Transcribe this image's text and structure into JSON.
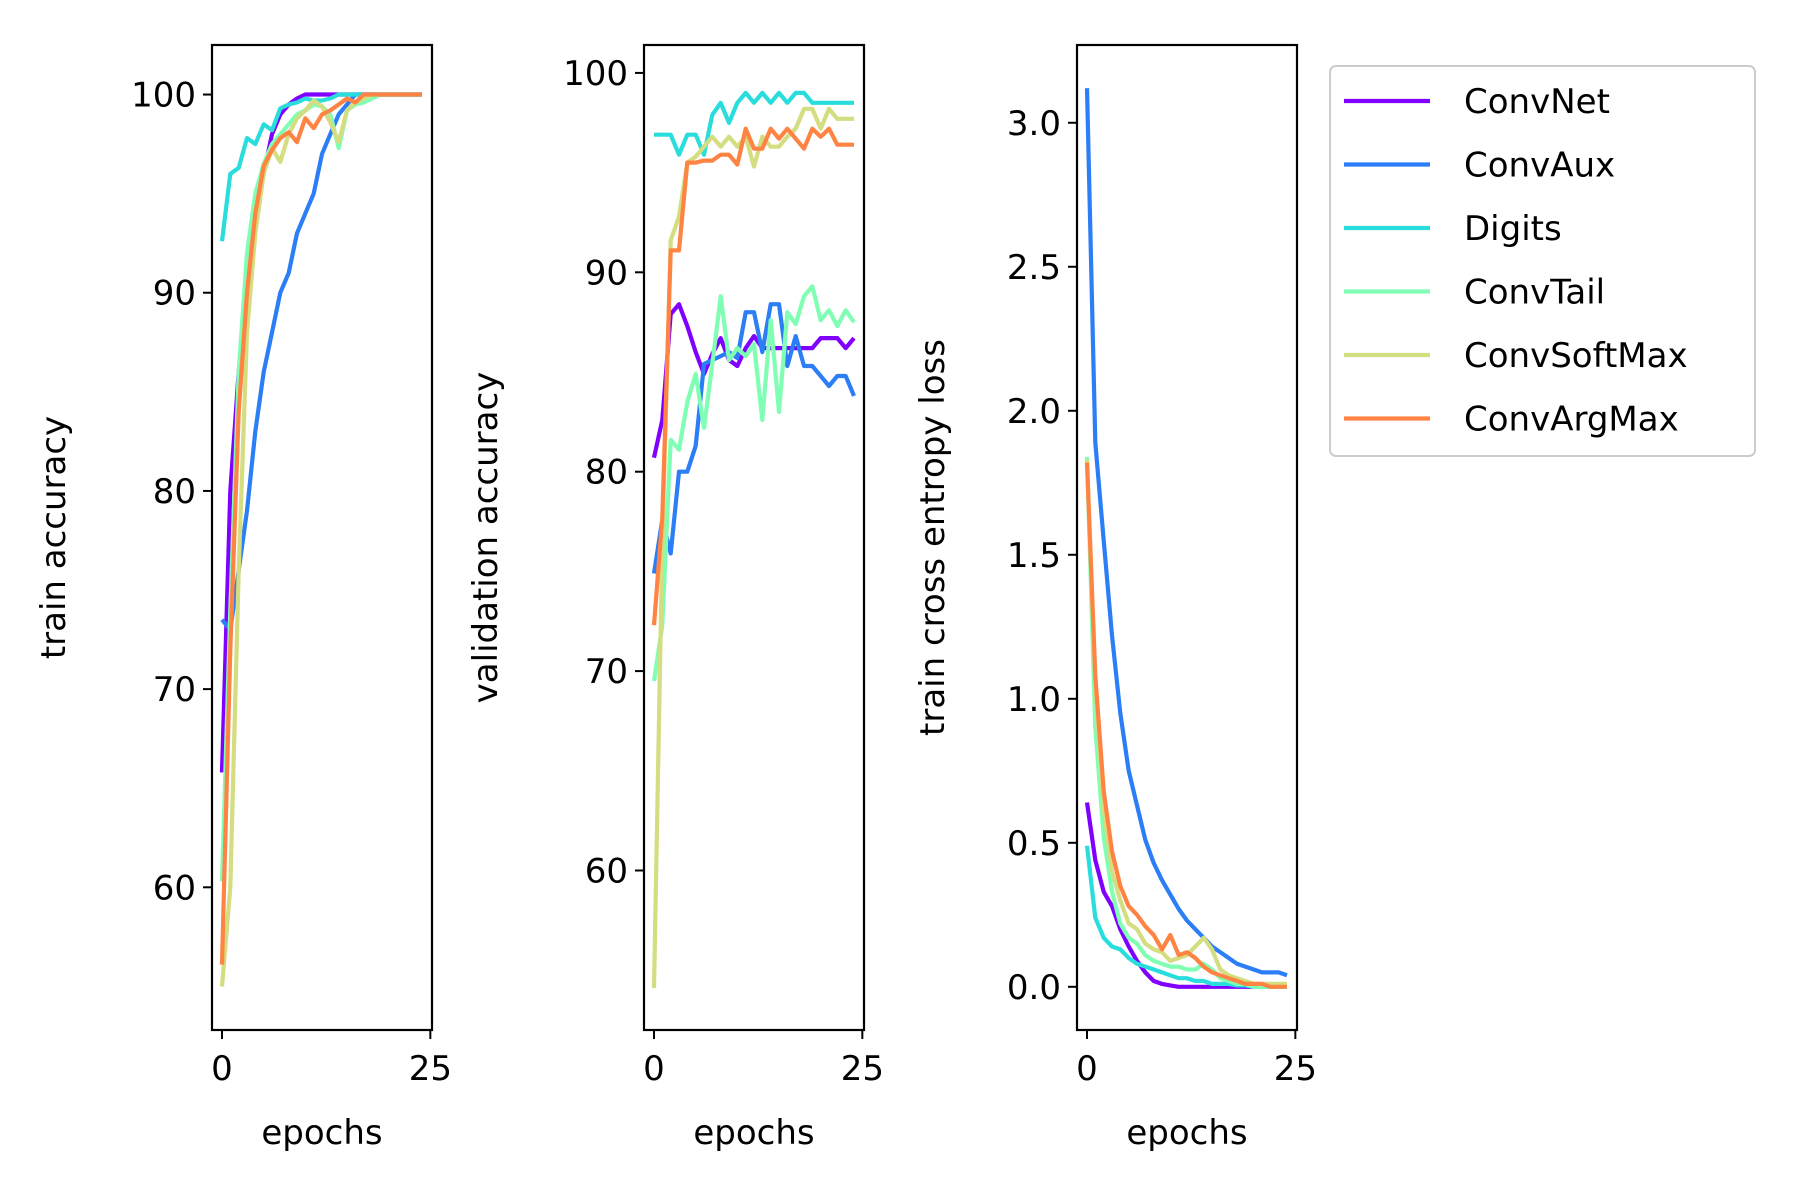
{
  "chart_data": [
    {
      "type": "line",
      "id": "train-accuracy",
      "title": "",
      "xlabel": "epochs",
      "ylabel": "train accuracy",
      "xlim": [
        -1.2,
        25.2
      ],
      "ylim": [
        52.8,
        102.5
      ],
      "xticks": [
        0,
        25
      ],
      "yticks": [
        60,
        70,
        80,
        90,
        100
      ],
      "series": [
        {
          "name": "ConvNet",
          "values": [
            65.8,
            80,
            86,
            90,
            94,
            96,
            98,
            99,
            99.5,
            99.8,
            100,
            100,
            100,
            100,
            100,
            100,
            100,
            100,
            100,
            100,
            100,
            100,
            100,
            100,
            100
          ]
        },
        {
          "name": "ConvAux",
          "values": [
            73.5,
            73,
            76,
            79,
            83,
            86,
            88,
            90,
            91,
            93,
            94,
            95,
            97,
            98,
            99,
            99.5,
            100,
            100,
            100,
            100,
            100,
            100,
            100,
            100,
            100
          ]
        },
        {
          "name": "Digits",
          "values": [
            92.6,
            96,
            96.3,
            97.8,
            97.5,
            98.5,
            98.2,
            99.3,
            99.5,
            99.6,
            99.8,
            99.7,
            99.7,
            99.8,
            100,
            100,
            100,
            100,
            100,
            100,
            100,
            100,
            100,
            100,
            100
          ]
        },
        {
          "name": "ConvTail",
          "values": [
            60.3,
            74,
            86,
            92,
            95,
            96.5,
            97.5,
            98,
            98.5,
            99,
            99.2,
            99.5,
            99.4,
            99.0,
            97.3,
            99.2,
            99.5,
            99.6,
            99.8,
            100,
            100,
            100,
            100,
            100,
            100
          ]
        },
        {
          "name": "ConvSoftMax",
          "values": [
            55.0,
            60,
            76,
            88,
            93,
            96,
            97.3,
            96.6,
            98,
            98.8,
            99.2,
            99.7,
            99.4,
            98.6,
            97.6,
            99.2,
            99.6,
            99.8,
            100,
            100,
            100,
            100,
            100,
            100,
            100
          ]
        },
        {
          "name": "ConvArgMax",
          "values": [
            56.1,
            72,
            84,
            90,
            94,
            96.4,
            97.2,
            97.8,
            98.1,
            97.6,
            98.8,
            98.3,
            99,
            99.2,
            99.5,
            99.8,
            99.6,
            100,
            100,
            100,
            100,
            100,
            100,
            100,
            100
          ]
        }
      ]
    },
    {
      "type": "line",
      "id": "validation-accuracy",
      "title": "",
      "xlabel": "epochs",
      "ylabel": "validation accuracy",
      "xlim": [
        -1.2,
        25.2
      ],
      "ylim": [
        52.0,
        101.4
      ],
      "xticks": [
        0,
        25
      ],
      "yticks": [
        60,
        70,
        80,
        90,
        100
      ],
      "series": [
        {
          "name": "ConvNet",
          "values": [
            80.7,
            82.6,
            87.9,
            88.4,
            87.3,
            86.0,
            84.9,
            85.9,
            86.7,
            85.6,
            85.3,
            86.2,
            86.8,
            86.2,
            86.2,
            86.2,
            86.2,
            86.2,
            86.2,
            86.2,
            86.7,
            86.7,
            86.7,
            86.2,
            86.7
          ]
        },
        {
          "name": "ConvAux",
          "values": [
            74.9,
            77.6,
            75.9,
            80.0,
            80.0,
            81.3,
            85.4,
            85.6,
            85.8,
            86.0,
            85.7,
            88.0,
            88.0,
            86.0,
            88.4,
            88.4,
            85.3,
            86.8,
            85.3,
            85.3,
            84.8,
            84.3,
            84.8,
            84.8,
            83.8
          ]
        },
        {
          "name": "Digits",
          "values": [
            96.9,
            96.9,
            96.9,
            95.9,
            96.9,
            96.9,
            95.9,
            97.9,
            98.5,
            97.5,
            98.5,
            99.0,
            98.5,
            99.0,
            98.5,
            99.0,
            98.5,
            99.0,
            99.0,
            98.5,
            98.5,
            98.5,
            98.5,
            98.5,
            98.5
          ]
        },
        {
          "name": "ConvTail",
          "values": [
            69.5,
            72.3,
            81.6,
            81.1,
            83.5,
            84.9,
            82.2,
            85.4,
            88.8,
            85.6,
            86.2,
            85.8,
            86.4,
            82.6,
            87.6,
            83.0,
            88.0,
            87.4,
            88.8,
            89.3,
            87.6,
            88.1,
            87.3,
            88.1,
            87.5
          ]
        },
        {
          "name": "ConvSoftMax",
          "values": [
            54.1,
            76.4,
            91.6,
            92.8,
            95.5,
            95.8,
            96.3,
            96.8,
            96.3,
            96.8,
            96.3,
            96.8,
            95.3,
            96.8,
            96.3,
            96.3,
            96.8,
            97.2,
            98.2,
            98.2,
            97.2,
            98.2,
            97.7,
            97.7,
            97.7
          ]
        },
        {
          "name": "ConvArgMax",
          "values": [
            72.3,
            77.7,
            91.1,
            91.1,
            95.5,
            95.5,
            95.6,
            95.6,
            95.9,
            95.9,
            95.4,
            97.2,
            96.2,
            96.2,
            97.2,
            96.7,
            97.2,
            96.7,
            96.2,
            97.2,
            96.8,
            97.2,
            96.4,
            96.4,
            96.4
          ]
        }
      ]
    },
    {
      "type": "line",
      "id": "train-loss",
      "title": "",
      "xlabel": "epochs",
      "ylabel": "train cross entropy loss",
      "xlim": [
        -1.2,
        25.2
      ],
      "ylim": [
        -0.15,
        3.27
      ],
      "xticks": [
        0,
        25
      ],
      "yticks": [
        0.0,
        0.5,
        1.0,
        1.5,
        2.0,
        2.5,
        3.0
      ],
      "ytick_labels": [
        "0.0",
        "0.5",
        "1.0",
        "1.5",
        "2.0",
        "2.5",
        "3.0"
      ],
      "series": [
        {
          "name": "ConvNet",
          "values": [
            0.64,
            0.44,
            0.33,
            0.28,
            0.2,
            0.14,
            0.09,
            0.05,
            0.02,
            0.01,
            0.005,
            0.0,
            0.0,
            0.0,
            0.0,
            0.0,
            0.0,
            0.0,
            0.0,
            0.0,
            0.0,
            0.0,
            0.0,
            0.0,
            0.0
          ]
        },
        {
          "name": "ConvAux",
          "values": [
            3.12,
            1.89,
            1.55,
            1.22,
            0.95,
            0.75,
            0.63,
            0.51,
            0.43,
            0.37,
            0.32,
            0.27,
            0.23,
            0.2,
            0.17,
            0.14,
            0.12,
            0.1,
            0.08,
            0.07,
            0.06,
            0.05,
            0.05,
            0.05,
            0.04
          ]
        },
        {
          "name": "Digits",
          "values": [
            0.49,
            0.24,
            0.17,
            0.14,
            0.13,
            0.1,
            0.08,
            0.07,
            0.06,
            0.05,
            0.04,
            0.03,
            0.03,
            0.02,
            0.02,
            0.01,
            0.01,
            0.01,
            0.005,
            0.005,
            0.0,
            0.0,
            0.0,
            0.0,
            0.0
          ]
        },
        {
          "name": "ConvTail",
          "values": [
            1.84,
            0.9,
            0.52,
            0.33,
            0.22,
            0.17,
            0.15,
            0.11,
            0.09,
            0.08,
            0.07,
            0.07,
            0.06,
            0.06,
            0.08,
            0.06,
            0.03,
            0.02,
            0.01,
            0.01,
            0.0,
            0.0,
            0.0,
            0.0,
            0.0
          ]
        },
        {
          "name": "ConvSoftMax",
          "values": [
            1.83,
            1.05,
            0.62,
            0.4,
            0.3,
            0.22,
            0.2,
            0.15,
            0.13,
            0.12,
            0.09,
            0.1,
            0.11,
            0.14,
            0.17,
            0.13,
            0.06,
            0.04,
            0.03,
            0.02,
            0.01,
            0.01,
            0.01,
            0.01,
            0.01
          ]
        },
        {
          "name": "ConvArgMax",
          "values": [
            1.82,
            1.08,
            0.68,
            0.47,
            0.35,
            0.28,
            0.25,
            0.21,
            0.18,
            0.13,
            0.18,
            0.11,
            0.12,
            0.1,
            0.07,
            0.05,
            0.04,
            0.03,
            0.02,
            0.01,
            0.01,
            0.01,
            0.0,
            0.0,
            0.0
          ]
        }
      ]
    }
  ],
  "legend": {
    "position": "upper-right",
    "items": [
      {
        "name": "ConvNet",
        "color": "#8000ff"
      },
      {
        "name": "ConvAux",
        "color": "#2c7ef7"
      },
      {
        "name": "Digits",
        "color": "#2adddd"
      },
      {
        "name": "ConvTail",
        "color": "#80ffb4"
      },
      {
        "name": "ConvSoftMax",
        "color": "#d4dd80"
      },
      {
        "name": "ConvArgMax",
        "color": "#ff8444"
      }
    ]
  }
}
